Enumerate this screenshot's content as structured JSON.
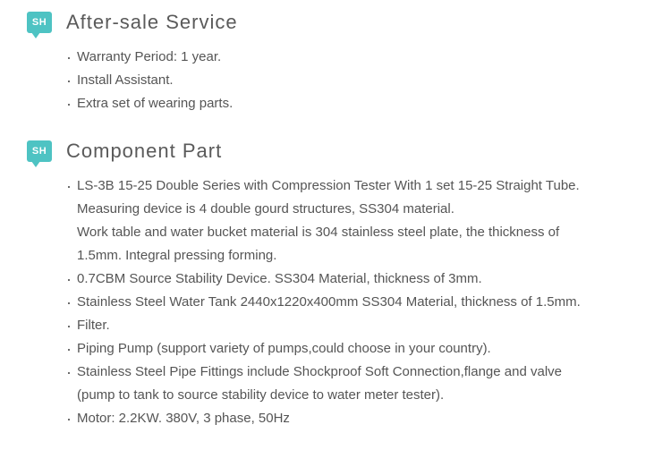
{
  "badge_label": "SH",
  "sections": [
    {
      "title": "After-sale Service",
      "items": [
        {
          "lines": [
            "Warranty Period: 1 year."
          ]
        },
        {
          "lines": [
            "Install Assistant."
          ]
        },
        {
          "lines": [
            "Extra set of wearing parts."
          ]
        }
      ]
    },
    {
      "title": "Component Part",
      "items": [
        {
          "lines": [
            "LS-3B 15-25 Double Series with Compression Tester With 1 set 15-25 Straight Tube.",
            "Measuring device is 4 double gourd structures, SS304 material.",
            "Work table and water bucket material is 304 stainless steel plate, the thickness of",
            "1.5mm. Integral pressing forming."
          ]
        },
        {
          "lines": [
            "0.7CBM Source Stability Device. SS304 Material, thickness of 3mm."
          ]
        },
        {
          "lines": [
            "Stainless Steel Water Tank 2440x1220x400mm SS304 Material, thickness of 1.5mm."
          ]
        },
        {
          "lines": [
            "Filter."
          ]
        },
        {
          "lines": [
            "Piping Pump (support variety of pumps,could choose in your country)."
          ]
        },
        {
          "lines": [
            "Stainless Steel Pipe Fittings include Shockproof Soft Connection,flange and valve",
            "(pump to tank to source stability device to water meter tester)."
          ]
        },
        {
          "lines": [
            "Motor: 2.2KW. 380V, 3 phase, 50Hz"
          ]
        }
      ]
    }
  ],
  "colors": {
    "badge_bg": "#4ec3c3",
    "title_color": "#5a5a5a",
    "text_color": "#555555",
    "background": "#ffffff"
  }
}
